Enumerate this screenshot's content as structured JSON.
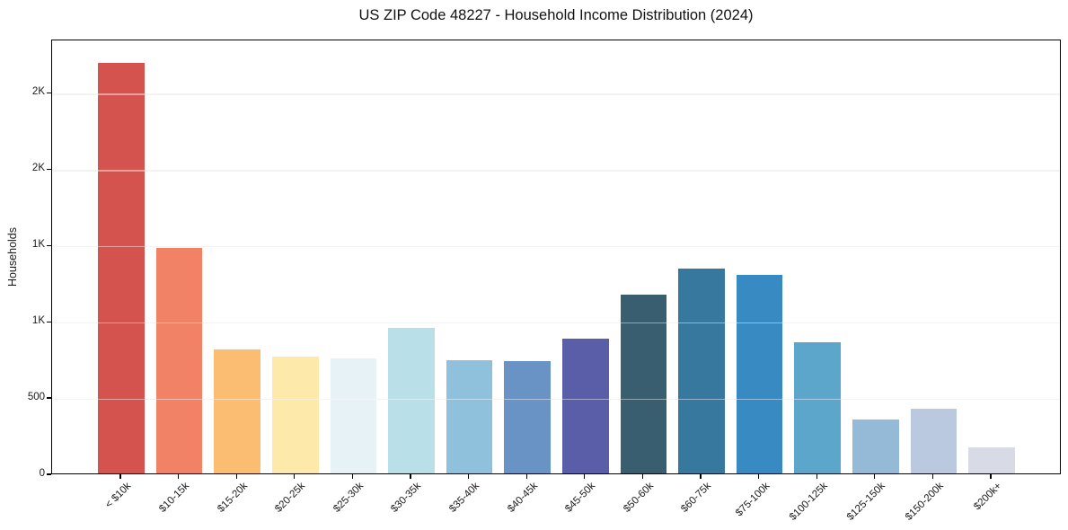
{
  "chart_data": {
    "type": "bar",
    "title": "US ZIP Code 48227 - Household Income Distribution (2024)",
    "xlabel": "",
    "ylabel": "Households",
    "categories": [
      "< $10k",
      "$10-15k",
      "$15-20k",
      "$20-25k",
      "$25-30k",
      "$30-35k",
      "$35-40k",
      "$40-45k",
      "$45-50k",
      "$50-60k",
      "$60-75k",
      "$75-100k",
      "$100-125k",
      "$125-150k",
      "$150-200k",
      "$200k+"
    ],
    "values": [
      2700,
      1490,
      825,
      780,
      765,
      965,
      755,
      750,
      895,
      1185,
      1355,
      1315,
      870,
      365,
      435,
      180
    ],
    "bar_colors": [
      "#d5534f",
      "#f18266",
      "#fabd72",
      "#fde9a9",
      "#e7f2f6",
      "#b9dfe9",
      "#8fc0dc",
      "#6a93c5",
      "#5a5ea9",
      "#395e70",
      "#37789f",
      "#378bc2",
      "#5ca6cb",
      "#94bad8",
      "#bac8e0",
      "#d8dae6"
    ],
    "ylim": [
      0,
      2850
    ],
    "yticks": [
      {
        "value": 0,
        "label": "0"
      },
      {
        "value": 500,
        "label": "500"
      },
      {
        "value": 1000,
        "label": "1K"
      },
      {
        "value": 1500,
        "label": "1K"
      },
      {
        "value": 2000,
        "label": "2K"
      },
      {
        "value": 2500,
        "label": "2K"
      }
    ],
    "grid": "horizontal",
    "legend": "none",
    "x_tick_rotation_deg": 45
  }
}
